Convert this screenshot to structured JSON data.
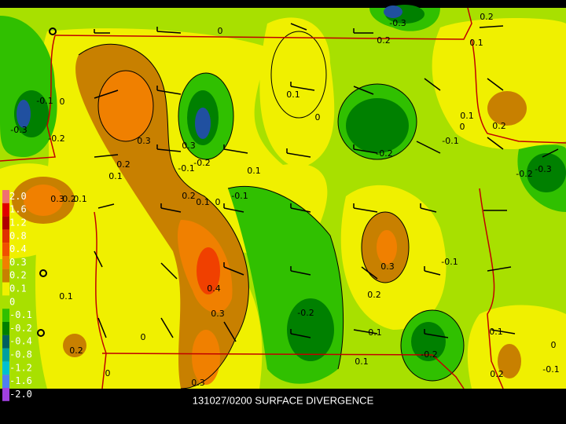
{
  "caption": "131027/0200 SURFACE DIVERGENCE",
  "legend": [
    {
      "label": "2.0",
      "color": "#f07070"
    },
    {
      "label": "1.6",
      "color": "#e00000"
    },
    {
      "label": "1.2",
      "color": "#b00000"
    },
    {
      "label": "0.8",
      "color": "#e03000"
    },
    {
      "label": "0.4",
      "color": "#f05000"
    },
    {
      "label": "0.3",
      "color": "#f08000"
    },
    {
      "label": "0.2",
      "color": "#c88000"
    },
    {
      "label": "0.1",
      "color": "#f0f000"
    },
    {
      "label": "0",
      "color": "#a8e000"
    },
    {
      "label": "-0.1",
      "color": "#30c000"
    },
    {
      "label": "-0.2",
      "color": "#008000"
    },
    {
      "label": "-0.4",
      "color": "#006060"
    },
    {
      "label": "-0.8",
      "color": "#00a0a0"
    },
    {
      "label": "-1.2",
      "color": "#00c0d0"
    },
    {
      "label": "-1.6",
      "color": "#5080f0"
    },
    {
      "label": "-2.0",
      "color": "#a040e0"
    }
  ],
  "contour_labels": [
    "0.3",
    "0.2",
    "0.1",
    "0.2",
    "0.1",
    "0",
    "-0.1",
    "0.4",
    "0.3",
    "0",
    "0.3",
    "0.2",
    "0",
    "0.1",
    "0.3",
    "0.2",
    "0.1",
    "-0.3",
    "-0.2",
    "0",
    "-0.1",
    "0",
    "0.3",
    "-0.2",
    "-0.1",
    "0.1",
    "0",
    "0.1",
    "-0.3",
    "0.2",
    "0.1",
    "0.2",
    "0.1",
    "0",
    "0.2",
    "-0.1",
    "-0.2",
    "-0.3",
    "-0.2",
    "0.3",
    "0.2",
    "-0.1",
    "-0.2",
    "0.1",
    "0.1",
    "-0.2",
    "0.1",
    "0",
    "-0.1",
    "0.2"
  ]
}
